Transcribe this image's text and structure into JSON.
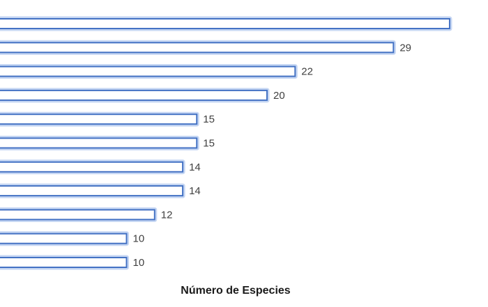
{
  "chart_data": {
    "type": "bar",
    "orientation": "horizontal",
    "xlabel": "Número de Especies",
    "ylabel": "",
    "title": "",
    "grid": false,
    "legend": false,
    "bar_color": "#4472c4",
    "values": [
      33,
      29,
      22,
      20,
      15,
      15,
      14,
      14,
      12,
      10,
      10
    ],
    "data_labels": [
      "",
      "29",
      "22",
      "20",
      "15",
      "15",
      "14",
      "14",
      "12",
      "10",
      "10"
    ]
  }
}
